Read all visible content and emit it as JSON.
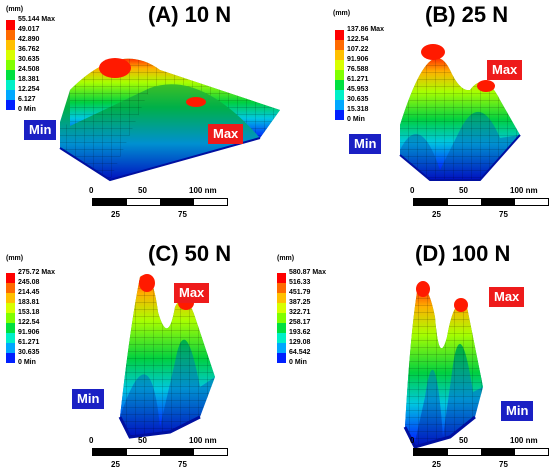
{
  "unit_label": "(mm)",
  "colors": {
    "scale": [
      "#ff0000",
      "#ff6a00",
      "#ffc000",
      "#d8ff00",
      "#80ff00",
      "#00e040",
      "#00f0c8",
      "#00a8ff",
      "#0020ff"
    ],
    "max_tag": "#ee1b1b",
    "min_tag": "#1a20c4"
  },
  "panels": [
    {
      "title": "(A) 10 N",
      "levels": [
        "55.144 Max",
        "49.017",
        "42.890",
        "36.762",
        "30.635",
        "24.508",
        "18.381",
        "12.254",
        "6.127",
        "0 Min"
      ],
      "max_label": "Max",
      "min_label": "Min",
      "scale_ticks": [
        "0",
        "50",
        "100 nm"
      ],
      "scale_ticks_lower": [
        "25",
        "75"
      ]
    },
    {
      "title": "(B) 25 N",
      "levels": [
        "137.86 Max",
        "122.54",
        "107.22",
        "91.906",
        "76.588",
        "61.271",
        "45.953",
        "30.635",
        "15.318",
        "0 Min"
      ],
      "max_label": "Max",
      "min_label": "Min",
      "scale_ticks": [
        "0",
        "50",
        "100 nm"
      ],
      "scale_ticks_lower": [
        "25",
        "75"
      ]
    },
    {
      "title": "(C) 50 N",
      "levels": [
        "275.72 Max",
        "245.08",
        "214.45",
        "183.81",
        "153.18",
        "122.54",
        "91.906",
        "61.271",
        "30.635",
        "0 Min"
      ],
      "max_label": "Max",
      "min_label": "Min",
      "scale_ticks": [
        "0",
        "50",
        "100 nm"
      ],
      "scale_ticks_lower": [
        "25",
        "75"
      ]
    },
    {
      "title": "(D) 100 N",
      "levels": [
        "580.87 Max",
        "516.33",
        "451.79",
        "387.25",
        "322.71",
        "258.17",
        "193.62",
        "129.08",
        "64.542",
        "0 Min"
      ],
      "max_label": "Max",
      "min_label": "Min",
      "scale_ticks": [
        "0",
        "50",
        "100 nm"
      ],
      "scale_ticks_lower": [
        "25",
        "75"
      ]
    }
  ]
}
